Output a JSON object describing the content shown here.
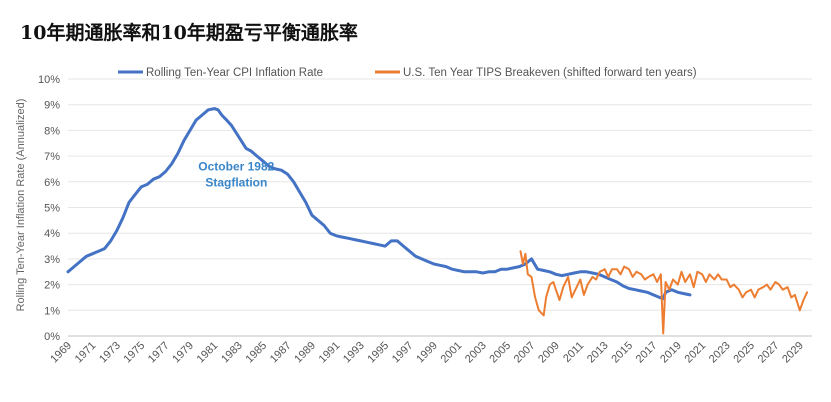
{
  "chart_data": {
    "type": "line",
    "title": "10年期通胀率和10年期盈亏平衡通胀率",
    "xlabel": "",
    "ylabel": "Rolling Ten-Year Inflation Rate (Annualized)",
    "xlim": [
      1969,
      2030
    ],
    "ylim": [
      0,
      10
    ],
    "y_ticks": [
      "0%",
      "1%",
      "2%",
      "3%",
      "4%",
      "5%",
      "6%",
      "7%",
      "8%",
      "9%",
      "10%"
    ],
    "x_ticks": [
      "1969",
      "1971",
      "1973",
      "1975",
      "1977",
      "1979",
      "1981",
      "1983",
      "1985",
      "1987",
      "1989",
      "1991",
      "1993",
      "1995",
      "1997",
      "1999",
      "2001",
      "2003",
      "2005",
      "2007",
      "2009",
      "2011",
      "2013",
      "2015",
      "2017",
      "2019",
      "2021",
      "2023",
      "2025",
      "2027",
      "2029"
    ],
    "grid": true,
    "legend_position": "top",
    "annotation": {
      "line1": "October 1982",
      "line2": "Stagflation",
      "x": 1982.8,
      "y": 6.2
    },
    "series": [
      {
        "name": "Rolling Ten-Year CPI Inflation Rate",
        "color": "#4472c4",
        "x": [
          1969,
          1969.5,
          1970,
          1970.5,
          1971,
          1971.5,
          1972,
          1972.5,
          1973,
          1973.5,
          1974,
          1974.5,
          1975,
          1975.5,
          1976,
          1976.5,
          1977,
          1977.5,
          1978,
          1978.5,
          1979,
          1979.5,
          1980,
          1980.5,
          1981,
          1981.3,
          1981.6,
          1982,
          1982.4,
          1982.8,
          1983.2,
          1983.6,
          1984,
          1984.5,
          1985,
          1985.5,
          1986,
          1986.5,
          1987,
          1987.5,
          1988,
          1988.5,
          1989,
          1989.5,
          1990,
          1990.5,
          1991,
          1991.5,
          1992,
          1992.5,
          1993,
          1993.5,
          1994,
          1994.5,
          1995,
          1995.5,
          1996,
          1996.5,
          1997,
          1997.5,
          1998,
          1998.5,
          1999,
          1999.5,
          2000,
          2000.5,
          2001,
          2001.5,
          2002,
          2002.5,
          2003,
          2003.5,
          2004,
          2004.5,
          2005,
          2005.5,
          2006,
          2006.5,
          2007,
          2007.5,
          2008,
          2008.5,
          2009,
          2009.5,
          2010,
          2010.5,
          2011,
          2011.5,
          2012,
          2012.5,
          2013,
          2013.5,
          2014,
          2014.5,
          2015,
          2015.5,
          2016,
          2016.5,
          2017,
          2017.5,
          2017.8,
          2018,
          2018.5,
          2019,
          2019.5,
          2020
        ],
        "values": [
          2.5,
          2.7,
          2.9,
          3.1,
          3.2,
          3.3,
          3.4,
          3.7,
          4.1,
          4.6,
          5.2,
          5.5,
          5.8,
          5.9,
          6.1,
          6.2,
          6.4,
          6.7,
          7.1,
          7.6,
          8.0,
          8.4,
          8.6,
          8.8,
          8.85,
          8.8,
          8.6,
          8.4,
          8.2,
          7.9,
          7.6,
          7.3,
          7.2,
          7.0,
          6.8,
          6.6,
          6.5,
          6.45,
          6.3,
          6.0,
          5.6,
          5.2,
          4.7,
          4.5,
          4.3,
          4.0,
          3.9,
          3.85,
          3.8,
          3.75,
          3.7,
          3.65,
          3.6,
          3.55,
          3.5,
          3.7,
          3.7,
          3.5,
          3.3,
          3.1,
          3.0,
          2.9,
          2.8,
          2.75,
          2.7,
          2.6,
          2.55,
          2.5,
          2.5,
          2.5,
          2.45,
          2.5,
          2.5,
          2.6,
          2.6,
          2.65,
          2.7,
          2.8,
          3.0,
          2.6,
          2.55,
          2.5,
          2.4,
          2.35,
          2.4,
          2.45,
          2.5,
          2.5,
          2.45,
          2.4,
          2.3,
          2.2,
          2.1,
          1.95,
          1.85,
          1.8,
          1.75,
          1.7,
          1.6,
          1.5,
          1.45,
          1.7,
          1.8,
          1.7,
          1.65,
          1.6
        ]
      },
      {
        "name": "U.S. Ten Year TIPS Breakeven (shifted forward ten years)",
        "color": "#ed7d31",
        "x": [
          2006.1,
          2006.3,
          2006.5,
          2006.7,
          2007,
          2007.3,
          2007.6,
          2008,
          2008.2,
          2008.5,
          2008.8,
          2009,
          2009.3,
          2009.6,
          2010,
          2010.3,
          2010.6,
          2011,
          2011.3,
          2011.6,
          2012,
          2012.3,
          2012.6,
          2013,
          2013.3,
          2013.6,
          2014,
          2014.3,
          2014.6,
          2015,
          2015.3,
          2015.6,
          2016,
          2016.3,
          2016.6,
          2017,
          2017.3,
          2017.6,
          2017.8,
          2018,
          2018.3,
          2018.6,
          2019,
          2019.3,
          2019.6,
          2020,
          2020.3,
          2020.6,
          2021,
          2021.3,
          2021.6,
          2022,
          2022.3,
          2022.6,
          2023,
          2023.3,
          2023.6,
          2024,
          2024.3,
          2024.6,
          2025,
          2025.3,
          2025.6,
          2026,
          2026.3,
          2026.6,
          2027,
          2027.3,
          2027.6,
          2028,
          2028.3,
          2028.6,
          2029,
          2029.3,
          2029.6
        ],
        "values": [
          3.3,
          2.8,
          3.2,
          2.4,
          2.3,
          1.5,
          1.0,
          0.8,
          1.5,
          2.0,
          2.1,
          1.8,
          1.4,
          1.9,
          2.3,
          1.5,
          1.8,
          2.2,
          1.6,
          2.0,
          2.3,
          2.2,
          2.5,
          2.6,
          2.3,
          2.6,
          2.6,
          2.4,
          2.7,
          2.6,
          2.3,
          2.5,
          2.4,
          2.2,
          2.3,
          2.4,
          2.1,
          2.4,
          0.1,
          2.1,
          1.8,
          2.2,
          2.0,
          2.5,
          2.1,
          2.4,
          1.9,
          2.5,
          2.4,
          2.1,
          2.4,
          2.2,
          2.4,
          2.2,
          2.2,
          1.9,
          2.0,
          1.8,
          1.5,
          1.7,
          1.8,
          1.5,
          1.8,
          1.9,
          2.0,
          1.8,
          2.1,
          2.0,
          1.8,
          1.9,
          1.5,
          1.6,
          1.0,
          1.4,
          1.7
        ]
      }
    ]
  }
}
